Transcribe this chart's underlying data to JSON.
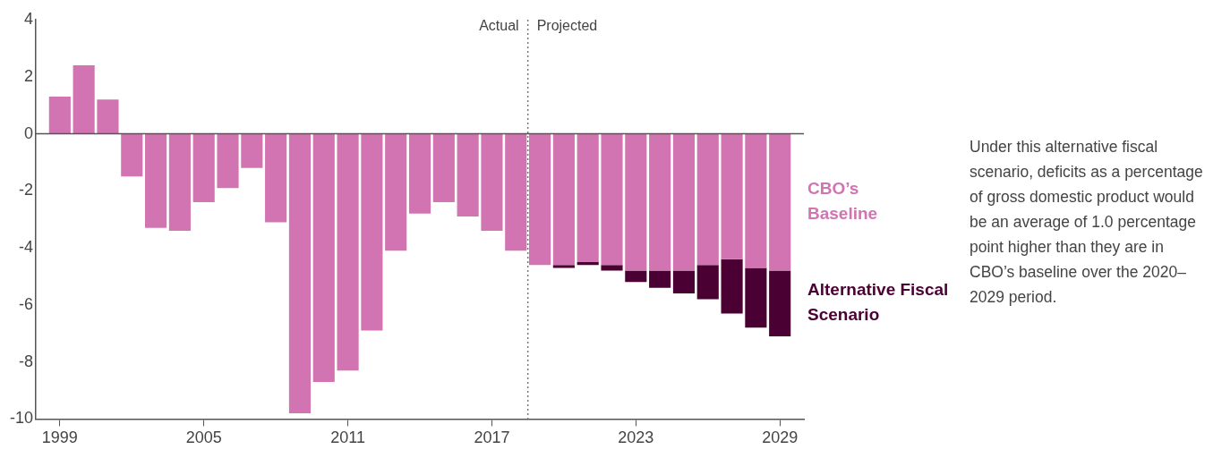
{
  "chart_data": {
    "type": "bar",
    "stacked": true,
    "x": [
      1999,
      2000,
      2001,
      2002,
      2003,
      2004,
      2005,
      2006,
      2007,
      2008,
      2009,
      2010,
      2011,
      2012,
      2013,
      2014,
      2015,
      2016,
      2017,
      2018,
      2019,
      2020,
      2021,
      2022,
      2023,
      2024,
      2025,
      2026,
      2027,
      2028,
      2029
    ],
    "series": [
      {
        "name": "CBO’s Baseline",
        "color": "#d174b1",
        "values": [
          1.3,
          2.4,
          1.2,
          -1.5,
          -3.3,
          -3.4,
          -2.4,
          -1.9,
          -1.2,
          -3.1,
          -9.8,
          -8.7,
          -8.3,
          -6.9,
          -4.1,
          -2.8,
          -2.4,
          -2.9,
          -3.4,
          -4.1,
          -4.6,
          -4.6,
          -4.5,
          -4.6,
          -4.8,
          -4.8,
          -4.8,
          -4.6,
          -4.4,
          -4.7,
          -4.8
        ]
      },
      {
        "name": "Alternative Fiscal Scenario",
        "color": "#4a0033",
        "values": [
          null,
          null,
          null,
          null,
          null,
          null,
          null,
          null,
          null,
          null,
          null,
          null,
          null,
          null,
          null,
          null,
          null,
          null,
          null,
          null,
          null,
          -0.1,
          -0.1,
          -0.2,
          -0.4,
          -0.6,
          -0.8,
          -1.2,
          -1.9,
          -2.1,
          -2.3
        ]
      }
    ],
    "xlim": [
      1998,
      2030
    ],
    "xticks": [
      1999,
      2005,
      2011,
      2017,
      2023,
      2029
    ],
    "ylim": [
      -10,
      4
    ],
    "yticks": [
      4,
      2,
      0,
      -2,
      -4,
      -6,
      -8,
      -10
    ],
    "ref_lines": [
      {
        "axis": "x",
        "value": 2018.5,
        "line_style": "dotted",
        "color": "#777777"
      },
      {
        "axis": "y",
        "value": 0,
        "line_style": "solid",
        "color": "#555555"
      }
    ],
    "annotations": [
      "Actual",
      "Projected",
      "Under this alternative fiscal scenario, deficits as a percentage of gross domestic product would be an average of 1.0 percentage point higher than they are in CBO’s baseline over the 2020–2029 period."
    ],
    "grid": false,
    "legend": false
  }
}
